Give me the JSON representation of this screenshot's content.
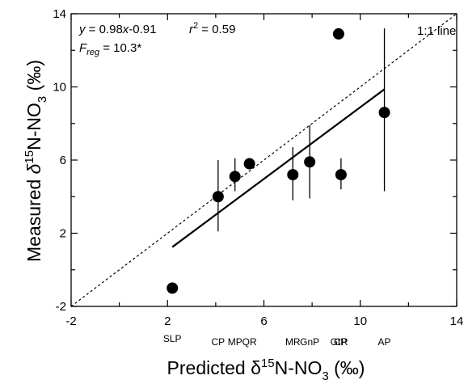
{
  "chart_data": {
    "type": "scatter",
    "title": "",
    "xlabel_parts": {
      "prefix": "Predicted δ",
      "sup": "15",
      "mid": "N-NO",
      "sub": "3",
      "suffix": " (‰)"
    },
    "ylabel_parts": {
      "prefix": "Measured ",
      "delta": "δ",
      "sup": "15",
      "mid": "N-NO",
      "sub": "3",
      "suffix": " (‰)"
    },
    "xlim": [
      -2,
      14
    ],
    "ylim": [
      -2,
      14
    ],
    "xticks": [
      "-2",
      "2",
      "6",
      "10",
      "14"
    ],
    "yticks": [
      "-2",
      "2",
      "6",
      "10",
      "14"
    ],
    "grid": false,
    "points": [
      {
        "site": "SLP",
        "x": 2.2,
        "y": -1.0,
        "yerr_low": null,
        "yerr_high": null
      },
      {
        "site": "CP",
        "x": 4.1,
        "y": 4.0,
        "yerr_low": 2.1,
        "yerr_high": 6.0
      },
      {
        "site": "MP",
        "x": 4.8,
        "y": 5.1,
        "yerr_low": 4.3,
        "yerr_high": 6.1
      },
      {
        "site": "QR",
        "x": 5.4,
        "y": 5.8,
        "yerr_low": null,
        "yerr_high": null
      },
      {
        "site": "MR",
        "x": 7.2,
        "y": 5.2,
        "yerr_low": 3.8,
        "yerr_high": 6.7
      },
      {
        "site": "GnP",
        "x": 7.9,
        "y": 5.9,
        "yerr_low": 3.9,
        "yerr_high": 7.9
      },
      {
        "site": "GtP",
        "x": 9.1,
        "y": 12.9,
        "yerr_low": null,
        "yerr_high": null
      },
      {
        "site": "CR",
        "x": 9.2,
        "y": 5.2,
        "yerr_low": 4.4,
        "yerr_high": 6.1
      },
      {
        "site": "AP",
        "x": 11.0,
        "y": 8.6,
        "yerr_low": 4.3,
        "yerr_high": 13.2
      }
    ],
    "site_labels_row1": [
      "SLP"
    ],
    "site_labels_row2": [
      "CP",
      "MP",
      "QR",
      "MR",
      "GnP",
      "GtP",
      "CR",
      "AP"
    ],
    "regression": {
      "slope": 0.98,
      "intercept": -0.91,
      "x_range": [
        2.2,
        11.0
      ]
    },
    "one_to_one": {
      "label": "1:1 line",
      "style": "dashed"
    },
    "annotations": {
      "eq_y": "y",
      "eq_rhs": " = 0.98",
      "eq_x": "x",
      "eq_tail": "-0.91",
      "r_r": "r",
      "r_sup": "2",
      "r_val": " = 0.59",
      "f_f": "F",
      "f_sub": "reg",
      "f_val": " = 10.3*"
    }
  }
}
